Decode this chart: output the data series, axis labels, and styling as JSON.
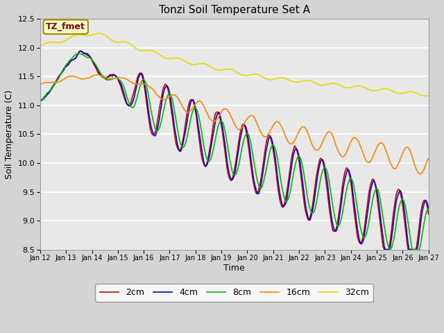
{
  "title": "Tonzi Soil Temperature Set A",
  "xlabel": "Time",
  "ylabel": "Soil Temperature (C)",
  "ylim": [
    8.5,
    12.5
  ],
  "xlim": [
    0,
    360
  ],
  "annotation": "TZ_fmet",
  "fig_bg": "#d4d4d4",
  "plot_bg": "#e8e8e8",
  "lines": {
    "2cm": {
      "color": "#cc0000",
      "lw": 1.2
    },
    "4cm": {
      "color": "#0000cc",
      "lw": 1.2
    },
    "8cm": {
      "color": "#00bb00",
      "lw": 1.2
    },
    "16cm": {
      "color": "#ff8800",
      "lw": 1.2
    },
    "32cm": {
      "color": "#dddd00",
      "lw": 1.2
    }
  },
  "xtick_labels": [
    "Jan 12",
    "Jan 13",
    "Jan 14",
    "Jan 15",
    "Jan 16",
    "Jan 17",
    "Jan 18",
    "Jan 19",
    "Jan 20",
    "Jan 21",
    "Jan 22",
    "Jan 23",
    "Jan 24",
    "Jan 25",
    "Jan 26",
    "Jan 27"
  ],
  "xtick_positions": [
    0,
    24,
    48,
    72,
    96,
    120,
    144,
    168,
    192,
    216,
    240,
    264,
    288,
    312,
    336,
    360
  ],
  "ytick_labels": [
    "8.5",
    "9.0",
    "9.5",
    "10.0",
    "10.5",
    "11.0",
    "11.5",
    "12.0",
    "12.5"
  ],
  "ytick_values": [
    8.5,
    9.0,
    9.5,
    10.0,
    10.5,
    11.0,
    11.5,
    12.0,
    12.5
  ]
}
